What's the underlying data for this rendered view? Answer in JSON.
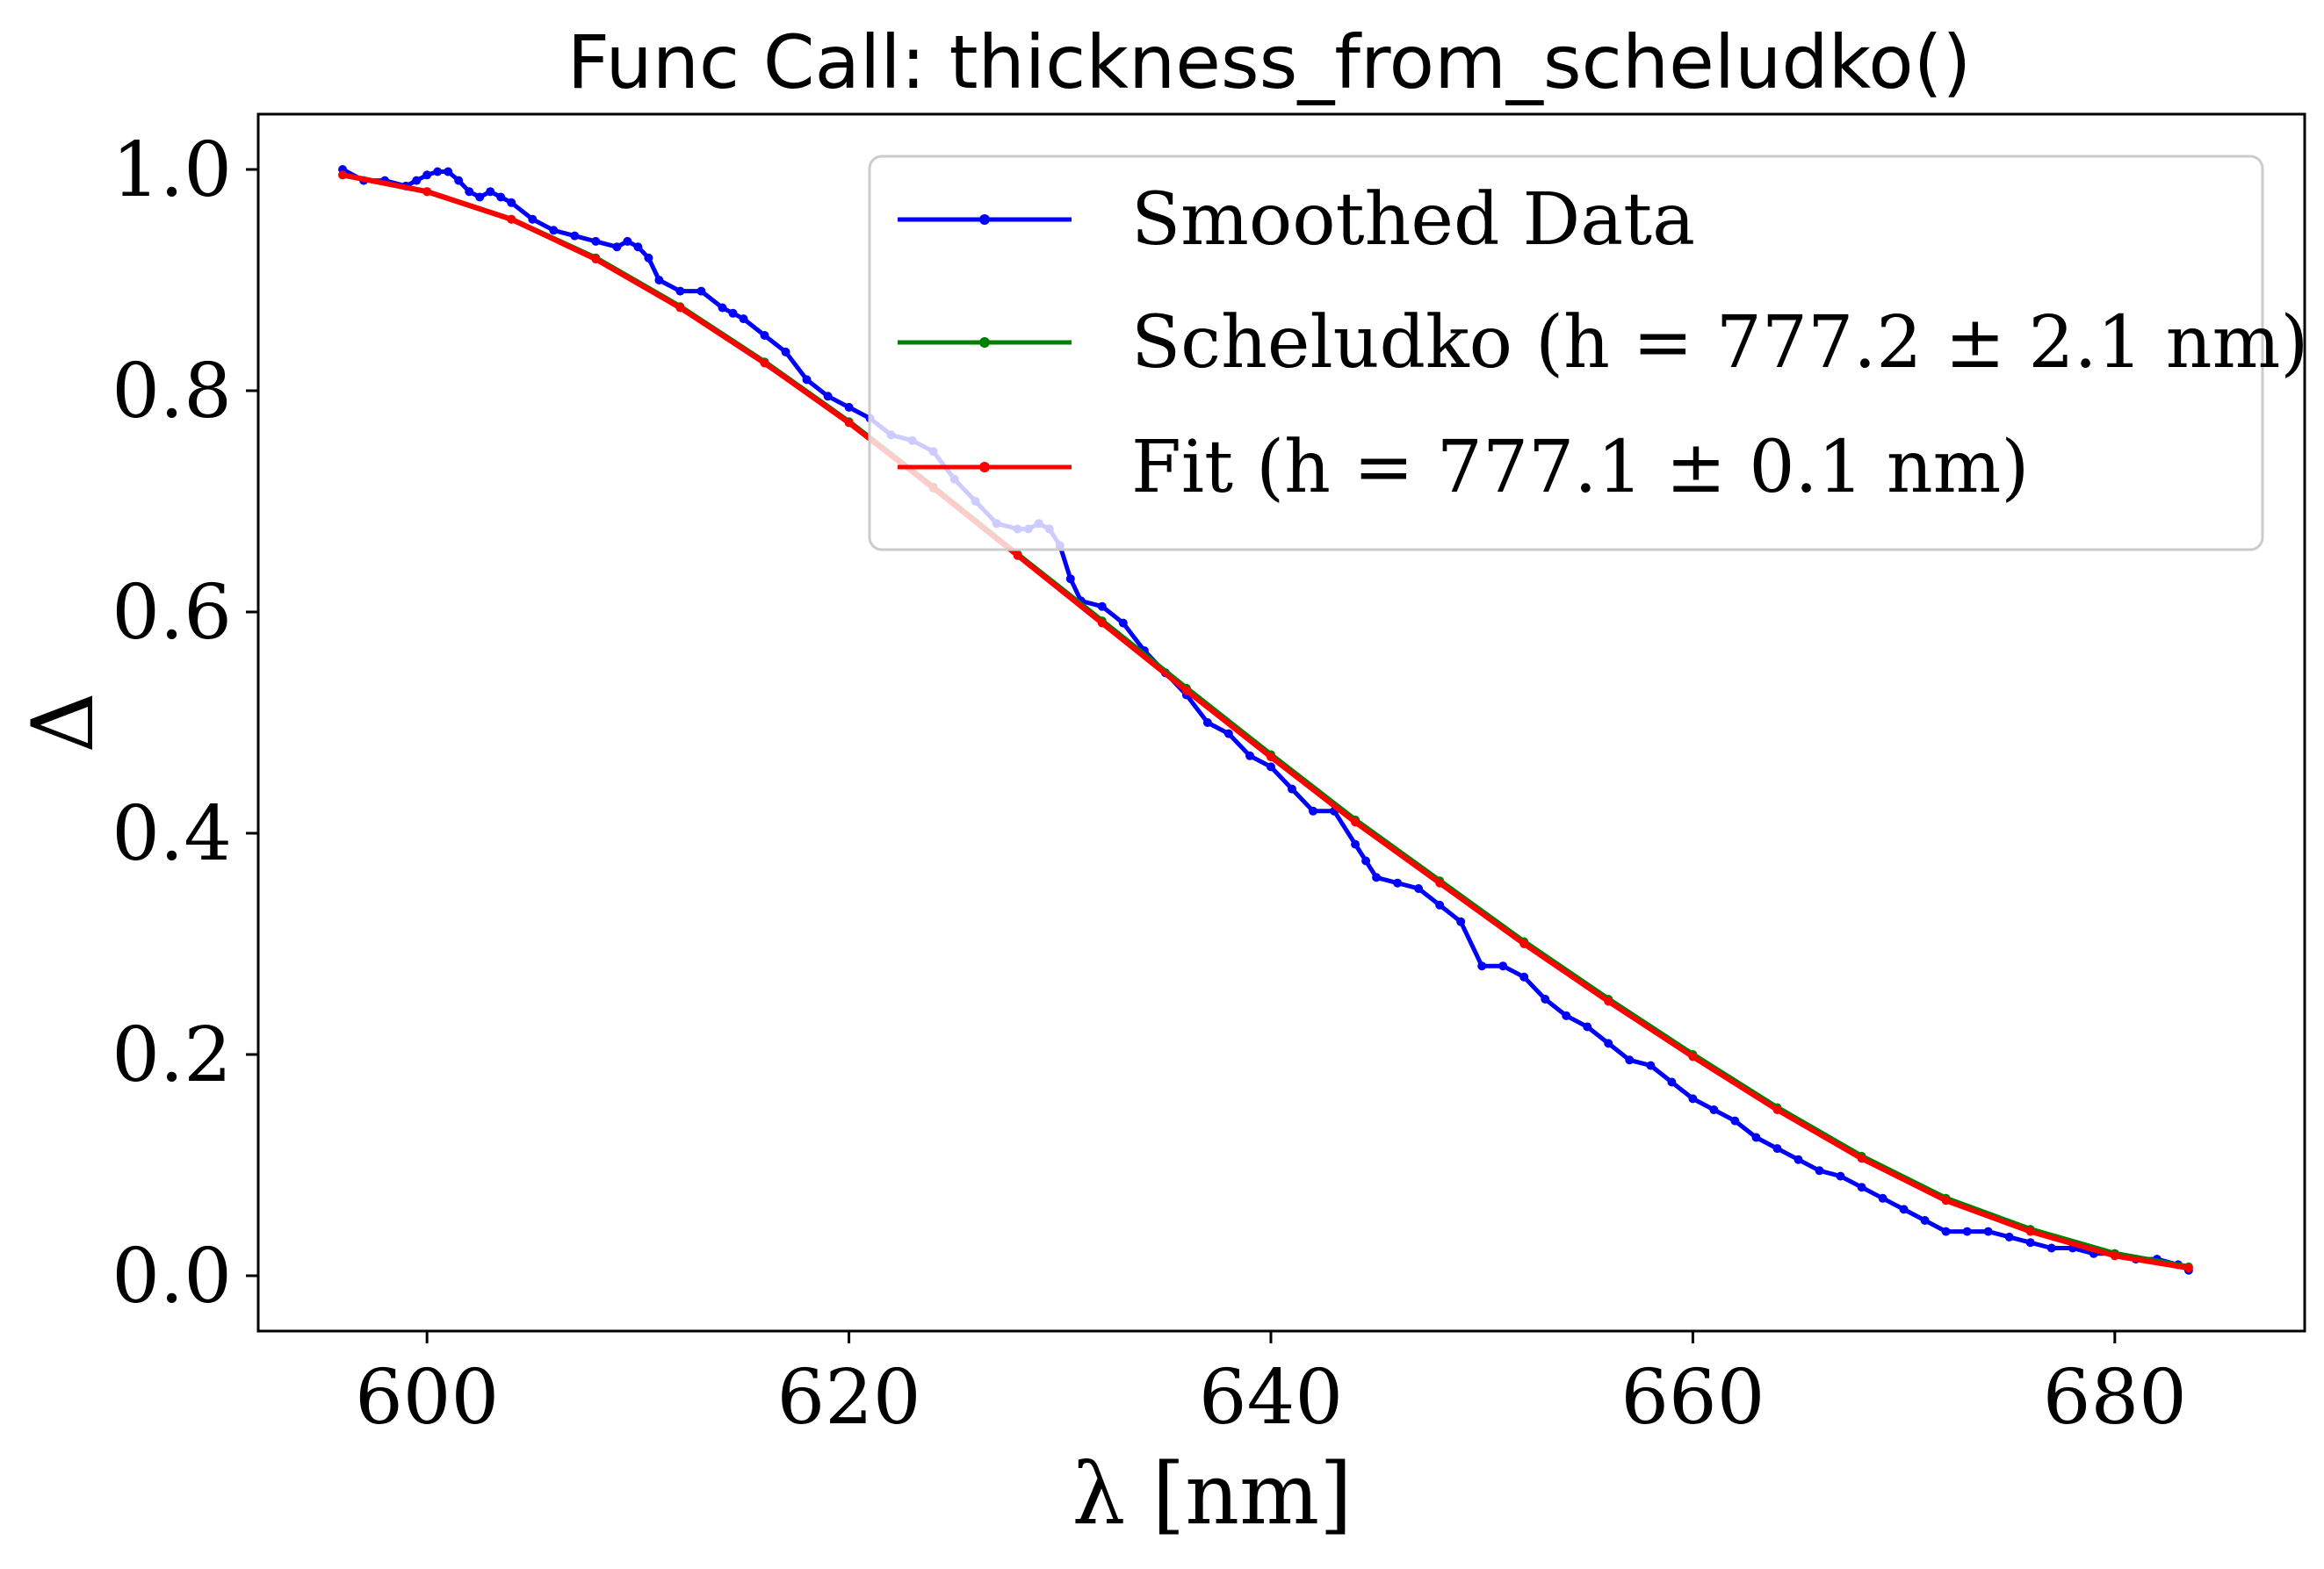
{
  "chart_data": {
    "type": "line",
    "title": "Func Call: thickness_from_scheludko()",
    "xlabel": "λ [nm]",
    "ylabel": "Δ",
    "xlim": [
      592,
      689
    ],
    "ylim": [
      -0.05,
      1.05
    ],
    "xticks": [
      600,
      620,
      640,
      660,
      680
    ],
    "xtick_labels": [
      "600",
      "620",
      "640",
      "660",
      "680"
    ],
    "yticks": [
      0.0,
      0.2,
      0.4,
      0.6,
      0.8,
      1.0
    ],
    "ytick_labels": [
      "0.0",
      "0.2",
      "0.4",
      "0.6",
      "0.8",
      "1.0"
    ],
    "grid": false,
    "legend_position": "top-right",
    "series": [
      {
        "name": "Smoothed Data",
        "label": "Smoothed Data",
        "color": "#0000ff",
        "x": [
          596.0,
          597.0,
          598.0,
          599.0,
          599.5,
          600.0,
          600.5,
          601.0,
          601.5,
          602.0,
          602.5,
          603.0,
          603.5,
          604.0,
          605.0,
          606.0,
          607.0,
          608.0,
          609.0,
          609.5,
          610.0,
          610.5,
          611.0,
          612.0,
          613.0,
          614.0,
          614.5,
          615.0,
          616.0,
          617.0,
          618.0,
          619.0,
          620.0,
          621.0,
          622.0,
          623.0,
          624.0,
          625.0,
          626.0,
          627.0,
          628.0,
          628.5,
          629.0,
          629.5,
          630.0,
          630.5,
          631.0,
          632.0,
          633.0,
          634.0,
          635.0,
          636.0,
          637.0,
          638.0,
          639.0,
          640.0,
          641.0,
          642.0,
          643.0,
          644.0,
          644.5,
          645.0,
          646.0,
          647.0,
          648.0,
          649.0,
          650.0,
          651.0,
          652.0,
          653.0,
          654.0,
          655.0,
          656.0,
          657.0,
          658.0,
          659.0,
          660.0,
          661.0,
          662.0,
          663.0,
          664.0,
          665.0,
          666.0,
          667.0,
          668.0,
          669.0,
          670.0,
          671.0,
          672.0,
          673.0,
          674.0,
          675.0,
          676.0,
          677.0,
          678.0,
          679.0,
          680.0,
          681.0,
          682.0,
          683.0,
          683.5
        ],
        "y": [
          1.0,
          0.99,
          0.99,
          0.985,
          0.99,
          0.995,
          0.998,
          0.998,
          0.99,
          0.98,
          0.975,
          0.98,
          0.975,
          0.97,
          0.955,
          0.945,
          0.94,
          0.935,
          0.93,
          0.935,
          0.93,
          0.92,
          0.9,
          0.89,
          0.89,
          0.875,
          0.87,
          0.865,
          0.85,
          0.835,
          0.81,
          0.795,
          0.785,
          0.775,
          0.76,
          0.755,
          0.745,
          0.72,
          0.7,
          0.68,
          0.675,
          0.675,
          0.68,
          0.675,
          0.66,
          0.63,
          0.61,
          0.605,
          0.59,
          0.565,
          0.545,
          0.525,
          0.5,
          0.49,
          0.47,
          0.46,
          0.44,
          0.42,
          0.42,
          0.39,
          0.375,
          0.36,
          0.355,
          0.35,
          0.335,
          0.32,
          0.28,
          0.28,
          0.27,
          0.25,
          0.235,
          0.225,
          0.21,
          0.195,
          0.19,
          0.175,
          0.16,
          0.15,
          0.14,
          0.125,
          0.115,
          0.105,
          0.095,
          0.09,
          0.08,
          0.07,
          0.06,
          0.05,
          0.04,
          0.04,
          0.04,
          0.035,
          0.03,
          0.025,
          0.025,
          0.02,
          0.02,
          0.015,
          0.015,
          0.01,
          0.005
        ]
      },
      {
        "name": "Scheludko",
        "label": "Scheludko (h = 777.2 ± 2.1 nm)",
        "color": "#008000",
        "x": [
          596,
          600,
          604,
          608,
          612,
          616,
          620,
          624,
          628,
          632,
          636,
          640,
          644,
          648,
          652,
          656,
          660,
          664,
          668,
          672,
          676,
          680,
          683.5
        ],
        "y": [
          0.995,
          0.98,
          0.955,
          0.92,
          0.876,
          0.826,
          0.772,
          0.713,
          0.652,
          0.592,
          0.531,
          0.471,
          0.412,
          0.357,
          0.302,
          0.25,
          0.2,
          0.152,
          0.108,
          0.07,
          0.042,
          0.02,
          0.008
        ]
      },
      {
        "name": "Fit",
        "label": "Fit (h = 777.1 ± 0.1 nm)",
        "color": "#ff0000",
        "x": [
          596,
          600,
          604,
          608,
          612,
          616,
          620,
          624,
          628,
          632,
          636,
          640,
          644,
          648,
          652,
          656,
          660,
          664,
          668,
          672,
          676,
          680,
          683.5
        ],
        "y": [
          0.995,
          0.98,
          0.955,
          0.919,
          0.875,
          0.825,
          0.771,
          0.712,
          0.651,
          0.59,
          0.529,
          0.469,
          0.41,
          0.355,
          0.3,
          0.248,
          0.198,
          0.15,
          0.106,
          0.068,
          0.04,
          0.018,
          0.007
        ]
      }
    ]
  }
}
